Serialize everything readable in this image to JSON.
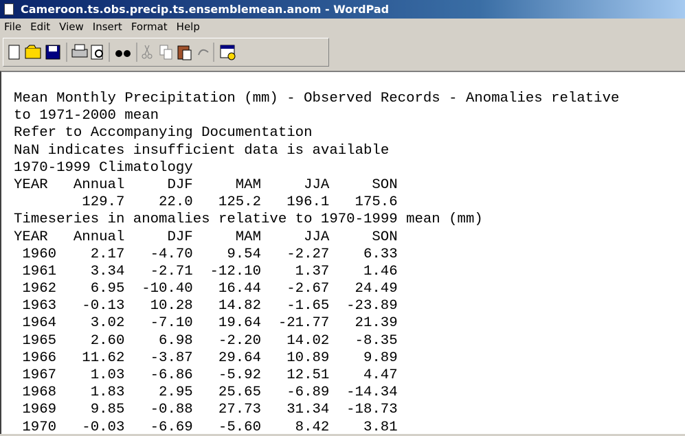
{
  "window": {
    "title": "Cameroon.ts.obs.precip.ts.ensemblemean.anom - WordPad",
    "menu": [
      "File",
      "Edit",
      "View",
      "Insert",
      "Format",
      "Help"
    ]
  },
  "document": {
    "intro": [
      "Mean Monthly Precipitation (mm) - Observed Records - Anomalies relative",
      "to 1971-2000 mean",
      "Refer to Accompanying Documentation",
      "NaN indicates insufficient data is available",
      "1970-1999 Climatology"
    ],
    "climatology": {
      "header": [
        "YEAR",
        "Annual",
        "DJF",
        "MAM",
        "JJA",
        "SON"
      ],
      "values": [
        "129.7",
        "22.0",
        "125.2",
        "196.1",
        "175.6"
      ]
    },
    "timeseries_title": "Timeseries in anomalies relative to 1970-1999 mean (mm)",
    "table": {
      "header": [
        "YEAR",
        "Annual",
        "DJF",
        "MAM",
        "JJA",
        "SON"
      ],
      "rows": [
        [
          "1960",
          "2.17",
          "-4.70",
          "9.54",
          "-2.27",
          "6.33"
        ],
        [
          "1961",
          "3.34",
          "-2.71",
          "-12.10",
          "1.37",
          "1.46"
        ],
        [
          "1962",
          "6.95",
          "-10.40",
          "16.44",
          "-2.67",
          "24.49"
        ],
        [
          "1963",
          "-0.13",
          "10.28",
          "14.82",
          "-1.65",
          "-23.89"
        ],
        [
          "1964",
          "3.02",
          "-7.10",
          "19.64",
          "-21.77",
          "21.39"
        ],
        [
          "1965",
          "2.60",
          "6.98",
          "-2.20",
          "14.02",
          "-8.35"
        ],
        [
          "1966",
          "11.62",
          "-3.87",
          "29.64",
          "10.89",
          "9.89"
        ],
        [
          "1967",
          "1.03",
          "-6.86",
          "-5.92",
          "12.51",
          "4.47"
        ],
        [
          "1968",
          "1.83",
          "2.95",
          "25.65",
          "-6.89",
          "-14.34"
        ],
        [
          "1969",
          "9.85",
          "-0.88",
          "27.73",
          "31.34",
          "-18.73"
        ],
        [
          "1970",
          "-0.03",
          "-6.69",
          "-5.60",
          "8.42",
          "3.81"
        ]
      ]
    }
  }
}
